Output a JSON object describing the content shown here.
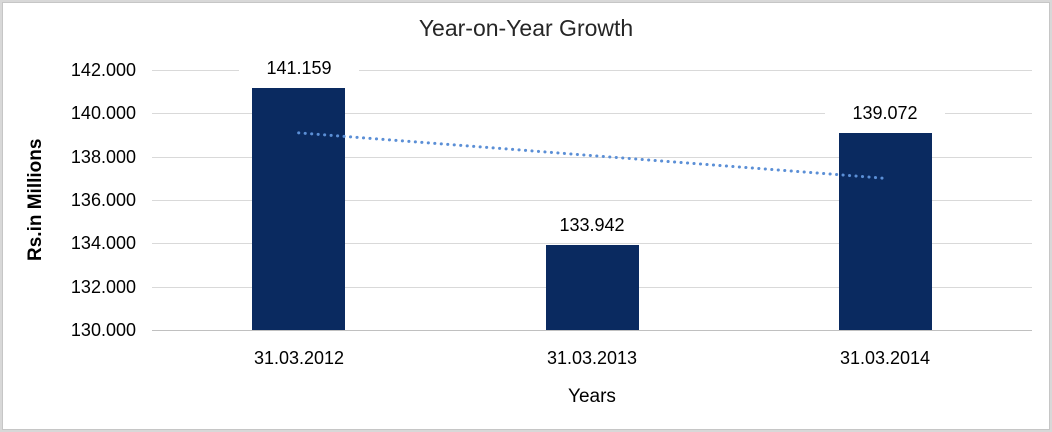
{
  "chart_data": {
    "type": "bar",
    "title": "Year-on-Year Growth",
    "categories": [
      "31.03.2012",
      "31.03.2013",
      "31.03.2014"
    ],
    "values": [
      141.159,
      133.942,
      139.072
    ],
    "data_labels": [
      "141.159",
      "133.942",
      "139.072"
    ],
    "xlabel": "Years",
    "ylabel": "Rs.in Millions",
    "ylim": [
      130.0,
      142.0
    ],
    "ytick_step": 2.0,
    "ytick_labels": [
      "142.000",
      "140.000",
      "138.000",
      "136.000",
      "134.000",
      "132.000",
      "130.000"
    ],
    "grid": true,
    "legend": "none",
    "colors": {
      "bar": "#0A2A60",
      "gridline": "#D9D9D9",
      "baseline": "#C0C0C0",
      "trendline": "#5B8FD6",
      "title_text": "#262626",
      "label_text": "#000000"
    },
    "trendline": {
      "type": "linear",
      "line_style": "dotted",
      "color": "#5B8FD6",
      "start": {
        "category_index": 0,
        "value": 139.1
      },
      "end": {
        "category_index": 2,
        "value": 137.0
      }
    }
  }
}
